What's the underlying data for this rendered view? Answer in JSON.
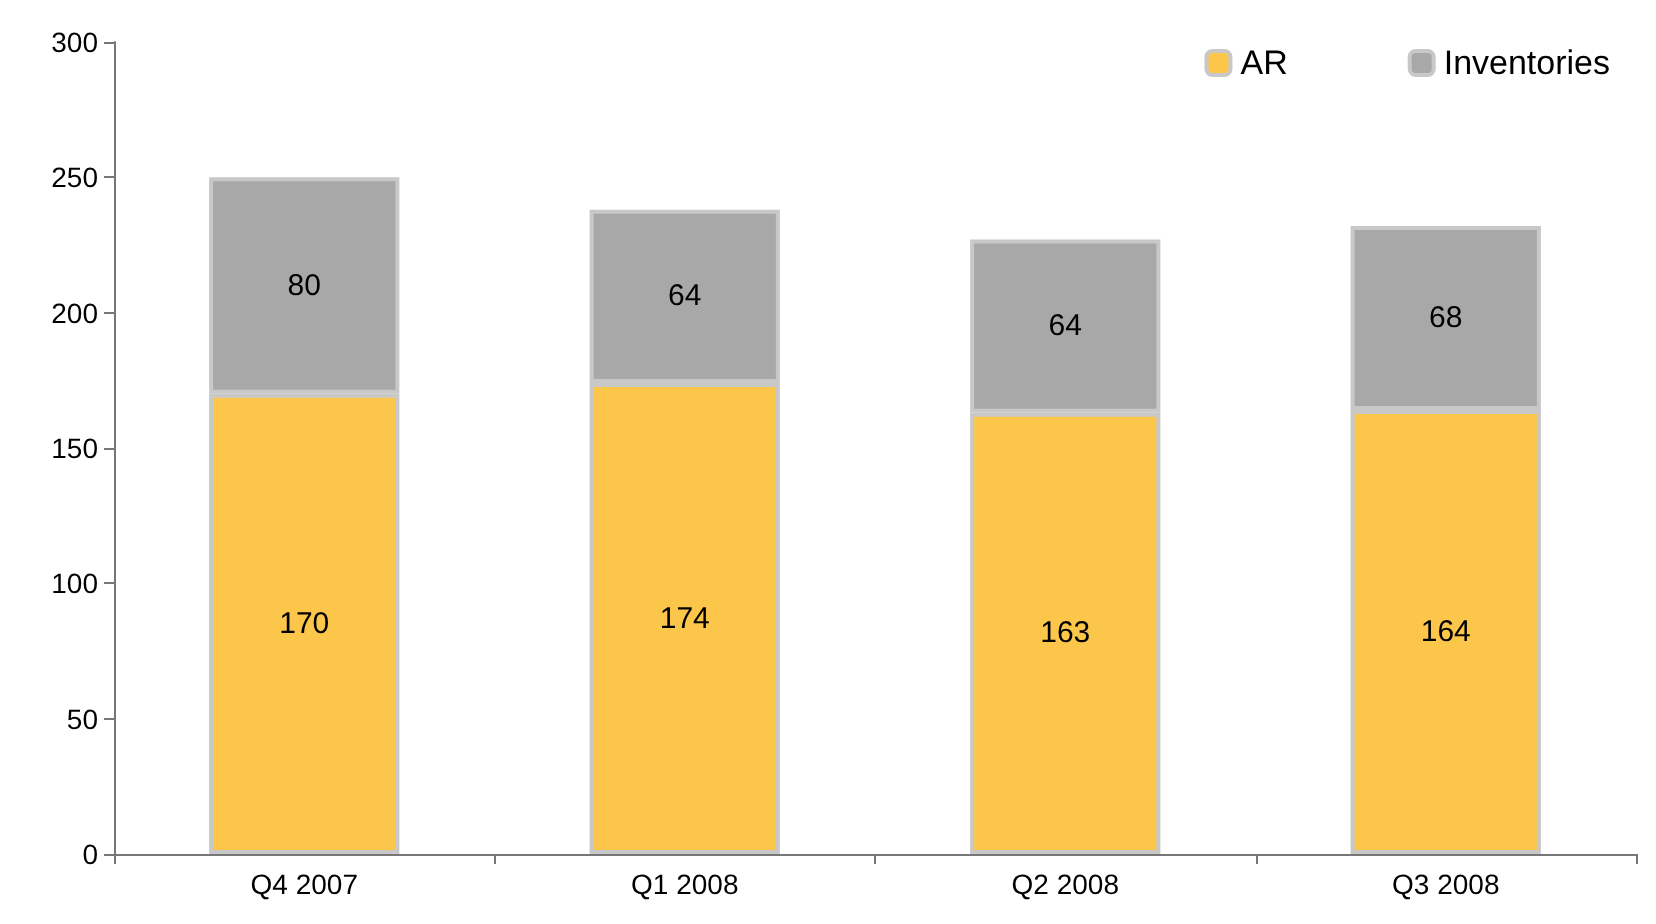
{
  "chart_data": {
    "type": "bar",
    "stacked": true,
    "categories": [
      "Q4 2007",
      "Q1 2008",
      "Q2 2008",
      "Q3 2008"
    ],
    "series": [
      {
        "name": "AR",
        "color": "#fcc64a",
        "values": [
          170,
          174,
          163,
          164
        ]
      },
      {
        "name": "Inventories",
        "color": "#a8a8a8",
        "values": [
          80,
          64,
          64,
          68
        ]
      }
    ],
    "ylim": [
      0,
      300
    ],
    "yticks": [
      0,
      50,
      100,
      150,
      200,
      250,
      300
    ],
    "grid": false,
    "legend": "top right",
    "data_labels": true
  }
}
